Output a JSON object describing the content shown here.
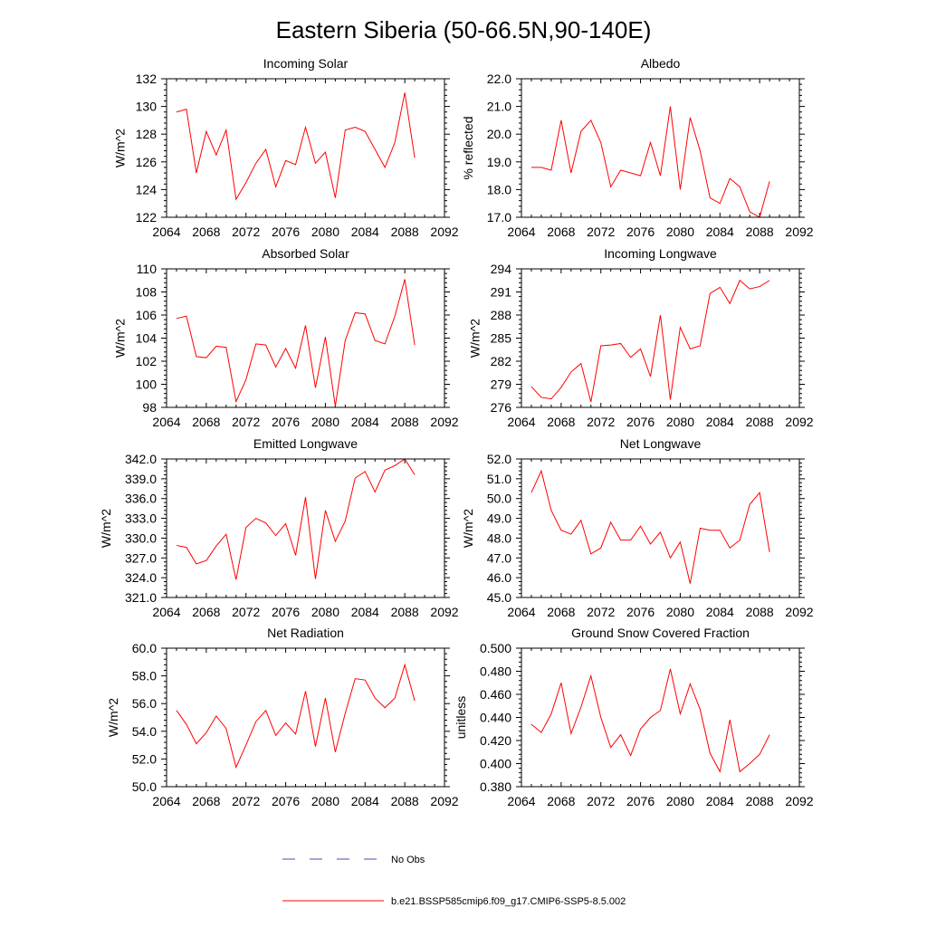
{
  "figure": {
    "title": "Eastern Siberia (50-66.5N,90-140E)"
  },
  "colors": {
    "model_line": "#ff0000",
    "obs_line": "#4a4aa8",
    "axes": "#000000"
  },
  "legend": {
    "items": [
      {
        "label": "No Obs",
        "style": "dashed",
        "color": "#4a4aa8"
      },
      {
        "label": "b.e21.BSSP585cmip6.f09_g17.CMIP6-SSP5-8.5.002",
        "style": "solid",
        "color": "#ff0000"
      }
    ]
  },
  "chart_data": [
    {
      "type": "line",
      "title": "Incoming Solar",
      "xlabel": "",
      "ylabel": "W/m^2",
      "xlim": [
        2064,
        2092
      ],
      "ylim": [
        122,
        132
      ],
      "ydecimals": 0,
      "xticks": [
        2064,
        2068,
        2072,
        2076,
        2080,
        2084,
        2088,
        2092
      ],
      "yticks": [
        122,
        124,
        126,
        128,
        130,
        132
      ],
      "series": [
        {
          "x": [
            2065,
            2066,
            2067,
            2068,
            2069,
            2070,
            2071,
            2072,
            2073,
            2074,
            2075,
            2076,
            2077,
            2078,
            2079,
            2080,
            2081,
            2082,
            2083,
            2084,
            2085,
            2086,
            2087,
            2088,
            2089
          ],
          "values": [
            129.6,
            129.8,
            125.2,
            128.2,
            126.5,
            128.3,
            123.3,
            124.5,
            125.9,
            126.9,
            124.2,
            126.1,
            125.8,
            128.5,
            125.9,
            126.7,
            123.4,
            128.3,
            128.5,
            128.2,
            126.9,
            125.6,
            127.4,
            131.0,
            126.3
          ]
        }
      ]
    },
    {
      "type": "line",
      "title": "Albedo",
      "xlabel": "",
      "ylabel": "% reflected",
      "xlim": [
        2064,
        2092
      ],
      "ylim": [
        17.0,
        22.0
      ],
      "ydecimals": 1,
      "xticks": [
        2064,
        2068,
        2072,
        2076,
        2080,
        2084,
        2088,
        2092
      ],
      "yticks": [
        17.0,
        18.0,
        19.0,
        20.0,
        21.0,
        22.0
      ],
      "series": [
        {
          "x": [
            2065,
            2066,
            2067,
            2068,
            2069,
            2070,
            2071,
            2072,
            2073,
            2074,
            2075,
            2076,
            2077,
            2078,
            2079,
            2080,
            2081,
            2082,
            2083,
            2084,
            2085,
            2086,
            2087,
            2088,
            2089
          ],
          "values": [
            18.8,
            18.8,
            18.7,
            20.5,
            18.6,
            20.1,
            20.5,
            19.7,
            18.1,
            18.7,
            18.6,
            18.5,
            19.7,
            18.5,
            21.0,
            18.0,
            20.6,
            19.4,
            17.7,
            17.5,
            18.4,
            18.1,
            17.2,
            17.0,
            18.3
          ]
        }
      ]
    },
    {
      "type": "line",
      "title": "Absorbed Solar",
      "xlabel": "",
      "ylabel": "W/m^2",
      "xlim": [
        2064,
        2092
      ],
      "ylim": [
        98,
        110
      ],
      "ydecimals": 0,
      "xticks": [
        2064,
        2068,
        2072,
        2076,
        2080,
        2084,
        2088,
        2092
      ],
      "yticks": [
        98,
        100,
        102,
        104,
        106,
        108,
        110
      ],
      "series": [
        {
          "x": [
            2065,
            2066,
            2067,
            2068,
            2069,
            2070,
            2071,
            2072,
            2073,
            2074,
            2075,
            2076,
            2077,
            2078,
            2079,
            2080,
            2081,
            2082,
            2083,
            2084,
            2085,
            2086,
            2087,
            2088,
            2089
          ],
          "values": [
            105.7,
            105.9,
            102.4,
            102.3,
            103.3,
            103.2,
            98.5,
            100.4,
            103.5,
            103.4,
            101.5,
            103.1,
            101.4,
            105.1,
            99.7,
            104.1,
            98.1,
            103.8,
            106.2,
            106.1,
            103.8,
            103.5,
            105.9,
            109.1,
            103.4
          ]
        }
      ]
    },
    {
      "type": "line",
      "title": "Incoming Longwave",
      "xlabel": "",
      "ylabel": "W/m^2",
      "xlim": [
        2064,
        2092
      ],
      "ylim": [
        276,
        294
      ],
      "ydecimals": 0,
      "xticks": [
        2064,
        2068,
        2072,
        2076,
        2080,
        2084,
        2088,
        2092
      ],
      "yticks": [
        276,
        279,
        282,
        285,
        288,
        291,
        294
      ],
      "series": [
        {
          "x": [
            2065,
            2066,
            2067,
            2068,
            2069,
            2070,
            2071,
            2072,
            2073,
            2074,
            2075,
            2076,
            2077,
            2078,
            2079,
            2080,
            2081,
            2082,
            2083,
            2084,
            2085,
            2086,
            2087,
            2088,
            2089
          ],
          "values": [
            278.7,
            277.3,
            277.1,
            278.6,
            280.6,
            281.7,
            276.7,
            284.0,
            284.1,
            284.3,
            282.5,
            283.6,
            280.0,
            288.0,
            277.0,
            286.4,
            283.6,
            284.0,
            290.8,
            291.6,
            289.5,
            292.5,
            291.4,
            291.7,
            292.5
          ]
        }
      ]
    },
    {
      "type": "line",
      "title": "Emitted Longwave",
      "xlabel": "",
      "ylabel": "W/m^2",
      "xlim": [
        2064,
        2092
      ],
      "ylim": [
        321.0,
        342.0
      ],
      "ydecimals": 1,
      "xticks": [
        2064,
        2068,
        2072,
        2076,
        2080,
        2084,
        2088,
        2092
      ],
      "yticks": [
        321.0,
        324.0,
        327.0,
        330.0,
        333.0,
        336.0,
        339.0,
        342.0
      ],
      "series": [
        {
          "x": [
            2065,
            2066,
            2067,
            2068,
            2069,
            2070,
            2071,
            2072,
            2073,
            2074,
            2075,
            2076,
            2077,
            2078,
            2079,
            2080,
            2081,
            2082,
            2083,
            2084,
            2085,
            2086,
            2087,
            2088,
            2089
          ],
          "values": [
            328.9,
            328.6,
            326.1,
            326.6,
            328.8,
            330.6,
            323.7,
            331.6,
            333.0,
            332.3,
            330.4,
            332.2,
            327.4,
            336.2,
            323.8,
            334.2,
            329.5,
            332.6,
            339.1,
            340.1,
            337.0,
            340.3,
            341.0,
            342.0,
            339.6
          ]
        }
      ]
    },
    {
      "type": "line",
      "title": "Net Longwave",
      "xlabel": "",
      "ylabel": "W/m^2",
      "xlim": [
        2064,
        2092
      ],
      "ylim": [
        45.0,
        52.0
      ],
      "ydecimals": 1,
      "xticks": [
        2064,
        2068,
        2072,
        2076,
        2080,
        2084,
        2088,
        2092
      ],
      "yticks": [
        45.0,
        46.0,
        47.0,
        48.0,
        49.0,
        50.0,
        51.0,
        52.0
      ],
      "series": [
        {
          "x": [
            2065,
            2066,
            2067,
            2068,
            2069,
            2070,
            2071,
            2072,
            2073,
            2074,
            2075,
            2076,
            2077,
            2078,
            2079,
            2080,
            2081,
            2082,
            2083,
            2084,
            2085,
            2086,
            2087,
            2088,
            2089
          ],
          "values": [
            50.3,
            51.4,
            49.4,
            48.4,
            48.2,
            48.9,
            47.2,
            47.5,
            48.8,
            47.9,
            47.9,
            48.6,
            47.7,
            48.3,
            47.0,
            47.8,
            45.7,
            48.5,
            48.4,
            48.4,
            47.5,
            47.9,
            49.7,
            50.3,
            47.3
          ]
        }
      ]
    },
    {
      "type": "line",
      "title": "Net Radiation",
      "xlabel": "",
      "ylabel": "W/m^2",
      "xlim": [
        2064,
        2092
      ],
      "ylim": [
        50.0,
        60.0
      ],
      "ydecimals": 1,
      "xticks": [
        2064,
        2068,
        2072,
        2076,
        2080,
        2084,
        2088,
        2092
      ],
      "yticks": [
        50.0,
        52.0,
        54.0,
        56.0,
        58.0,
        60.0
      ],
      "series": [
        {
          "x": [
            2065,
            2066,
            2067,
            2068,
            2069,
            2070,
            2071,
            2072,
            2073,
            2074,
            2075,
            2076,
            2077,
            2078,
            2079,
            2080,
            2081,
            2082,
            2083,
            2084,
            2085,
            2086,
            2087,
            2088,
            2089
          ],
          "values": [
            55.5,
            54.5,
            53.1,
            53.9,
            55.1,
            54.2,
            51.4,
            53.0,
            54.7,
            55.5,
            53.7,
            54.6,
            53.8,
            56.9,
            52.9,
            56.4,
            52.5,
            55.3,
            57.8,
            57.7,
            56.4,
            55.7,
            56.4,
            58.8,
            56.2
          ]
        }
      ]
    },
    {
      "type": "line",
      "title": "Ground Snow Covered Fraction",
      "xlabel": "",
      "ylabel": "unitless",
      "xlim": [
        2064,
        2092
      ],
      "ylim": [
        0.38,
        0.5
      ],
      "ydecimals": 3,
      "xticks": [
        2064,
        2068,
        2072,
        2076,
        2080,
        2084,
        2088,
        2092
      ],
      "yticks": [
        0.38,
        0.4,
        0.42,
        0.44,
        0.46,
        0.48,
        0.5
      ],
      "series": [
        {
          "x": [
            2065,
            2066,
            2067,
            2068,
            2069,
            2070,
            2071,
            2072,
            2073,
            2074,
            2075,
            2076,
            2077,
            2078,
            2079,
            2080,
            2081,
            2082,
            2083,
            2084,
            2085,
            2086,
            2087,
            2088,
            2089
          ],
          "values": [
            0.434,
            0.427,
            0.443,
            0.47,
            0.426,
            0.449,
            0.476,
            0.44,
            0.414,
            0.425,
            0.407,
            0.43,
            0.44,
            0.446,
            0.482,
            0.443,
            0.469,
            0.447,
            0.409,
            0.393,
            0.438,
            0.393,
            0.4,
            0.408,
            0.425
          ]
        }
      ]
    }
  ]
}
